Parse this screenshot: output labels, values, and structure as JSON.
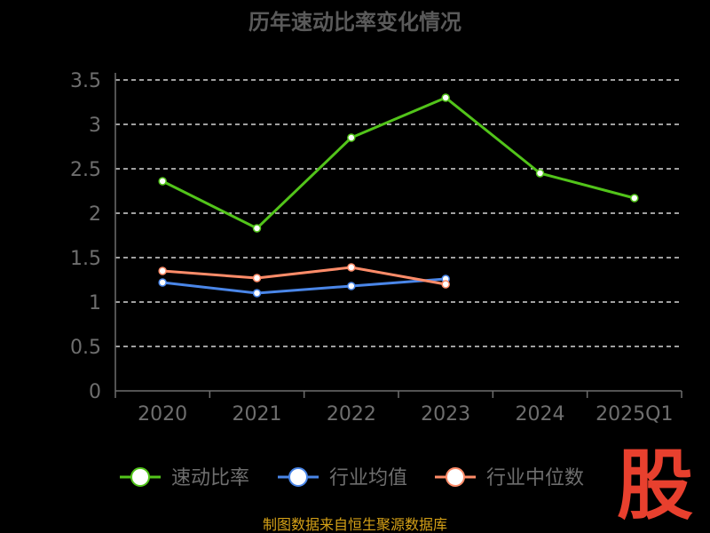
{
  "chart_data": {
    "type": "line",
    "title": "历年速动比率变化情况",
    "categories": [
      "2020",
      "2021",
      "2022",
      "2023",
      "2024",
      "2025Q1"
    ],
    "yticks": [
      "0",
      "0.5",
      "1",
      "1.5",
      "2",
      "2.5",
      "3",
      "3.5"
    ],
    "ylim": [
      0,
      3.5
    ],
    "grid": true,
    "legend_position": "bottom",
    "series": [
      {
        "name": "速动比率",
        "color": "#52c41a",
        "values": [
          2.36,
          1.83,
          2.85,
          3.3,
          2.45,
          2.17
        ]
      },
      {
        "name": "行业均值",
        "color": "#4a86e8",
        "values": [
          1.22,
          1.1,
          1.18,
          1.26,
          null,
          null
        ]
      },
      {
        "name": "行业中位数",
        "color": "#ff8c69",
        "values": [
          1.35,
          1.27,
          1.39,
          1.2,
          null,
          null
        ]
      }
    ]
  },
  "source_text": "制图数据来自恒生聚源数据库",
  "logo_text": "股",
  "colors": {
    "background": "#000000",
    "axis": "#6e6e6e",
    "grid": "#ffffff",
    "tick_text": "#6e6e6e",
    "title_text": "#5a5a5a",
    "source_text": "#d4a017",
    "logo": "#e8402e"
  }
}
